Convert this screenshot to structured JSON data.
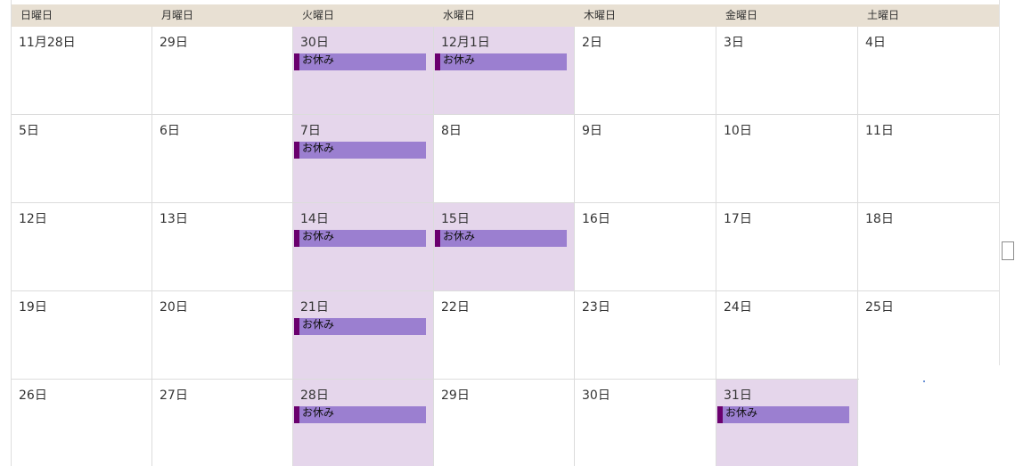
{
  "weekdays": [
    "日曜日",
    "月曜日",
    "火曜日",
    "水曜日",
    "木曜日",
    "金曜日",
    "土曜日"
  ],
  "event_label": "お休み",
  "colors": {
    "header_bg": "#e8e0d3",
    "holiday_bg": "#e5d6eb",
    "event_bg": "#9b7fd0",
    "event_marker": "#6a006e"
  },
  "weeks": [
    {
      "days": [
        {
          "label": "11月28日",
          "event": false
        },
        {
          "label": "29日",
          "event": false
        },
        {
          "label": "30日",
          "event": true
        },
        {
          "label": "12月1日",
          "event": true
        },
        {
          "label": "2日",
          "event": false
        },
        {
          "label": "3日",
          "event": false
        },
        {
          "label": "4日",
          "event": false
        }
      ]
    },
    {
      "days": [
        {
          "label": "5日",
          "event": false
        },
        {
          "label": "6日",
          "event": false
        },
        {
          "label": "7日",
          "event": true
        },
        {
          "label": "8日",
          "event": false
        },
        {
          "label": "9日",
          "event": false
        },
        {
          "label": "10日",
          "event": false
        },
        {
          "label": "11日",
          "event": false
        }
      ]
    },
    {
      "days": [
        {
          "label": "12日",
          "event": false
        },
        {
          "label": "13日",
          "event": false
        },
        {
          "label": "14日",
          "event": true
        },
        {
          "label": "15日",
          "event": true
        },
        {
          "label": "16日",
          "event": false
        },
        {
          "label": "17日",
          "event": false
        },
        {
          "label": "18日",
          "event": false
        }
      ]
    },
    {
      "days": [
        {
          "label": "19日",
          "event": false
        },
        {
          "label": "20日",
          "event": false
        },
        {
          "label": "21日",
          "event": true
        },
        {
          "label": "22日",
          "event": false
        },
        {
          "label": "23日",
          "event": false
        },
        {
          "label": "24日",
          "event": false
        },
        {
          "label": "25日",
          "event": false
        }
      ]
    },
    {
      "days": [
        {
          "label": "26日",
          "event": false
        },
        {
          "label": "27日",
          "event": false
        },
        {
          "label": "28日",
          "event": true
        },
        {
          "label": "29日",
          "event": false
        },
        {
          "label": "30日",
          "event": false
        },
        {
          "label": "31日",
          "event": true
        },
        {
          "label": "",
          "event": false
        }
      ]
    }
  ]
}
